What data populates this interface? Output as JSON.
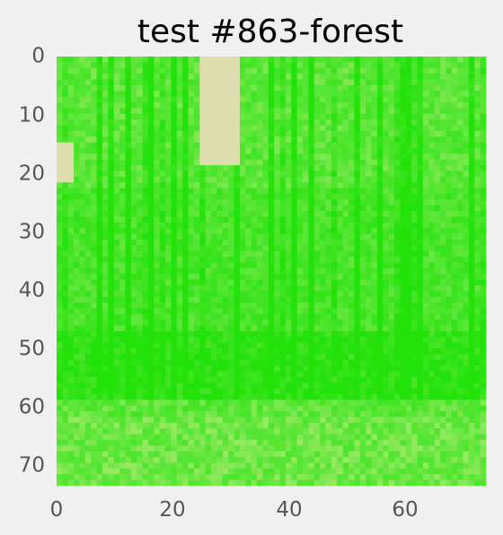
{
  "title": "test #863-forest",
  "image": {
    "grid_cols": 75,
    "grid_rows": 75,
    "palette": {
      "deep_green": "#22e20a",
      "mid_green": "#5ee63a",
      "light_green": "#a6ea6c",
      "pale": "#dcdfad",
      "background": "#f0f0f0"
    }
  },
  "axes": {
    "x_ticks": [
      "0",
      "20",
      "40",
      "60"
    ],
    "y_ticks": [
      "0",
      "10",
      "20",
      "30",
      "40",
      "50",
      "60",
      "70"
    ],
    "x_tick_values": [
      0,
      20,
      40,
      60
    ],
    "y_tick_values": [
      0,
      10,
      20,
      30,
      40,
      50,
      60,
      70
    ],
    "tick_color": "#555555"
  }
}
